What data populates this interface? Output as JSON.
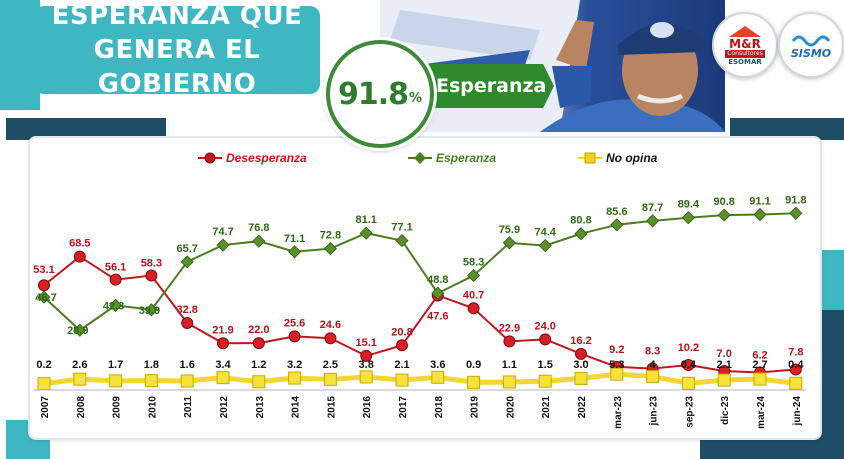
{
  "header": {
    "title_line1": "ESPERANZA QUE",
    "title_line2": "GENERA EL GOBIERNO",
    "highlight_value": "91.8",
    "highlight_unit": "%",
    "highlight_label": "Esperanza"
  },
  "logos": {
    "left_line1": "M&R",
    "left_line2": "Consultores",
    "left_line3": "ESOMAR",
    "right_text": "SISMO"
  },
  "colors": {
    "teal": "#3fb7c2",
    "navy": "#1d4e66",
    "red": "#c0161d",
    "green": "#4a7d22",
    "yellow": "#f2d21e"
  },
  "chart_data": {
    "type": "line",
    "categories": [
      "2007",
      "2008",
      "2009",
      "2010",
      "2011",
      "2012",
      "2013",
      "2014",
      "2015",
      "2016",
      "2017",
      "2018",
      "2019",
      "2020",
      "2021",
      "2022",
      "mar-23",
      "jun-23",
      "sep-23",
      "dic-23",
      "mar-24",
      "jun-24"
    ],
    "legend_position": "top",
    "grid": false,
    "ylim": [
      0,
      100
    ],
    "series": [
      {
        "name": "Desesperanza",
        "color": "#c0161d",
        "label_color": "#b3131a",
        "labels": [
          "53.1",
          "68.5",
          "56.1",
          "58.3",
          "32.8",
          "21.9",
          "22.0",
          "25.6",
          "24.6",
          "15.1",
          "20.8",
          "47.6",
          "40.7",
          "22.9",
          "24.0",
          "16.2",
          "9.2",
          "8.3",
          "10.2",
          "7.0",
          "6.2",
          "7.8"
        ],
        "values": [
          53.1,
          68.5,
          56.1,
          58.3,
          32.8,
          21.9,
          22.0,
          25.6,
          24.6,
          15.1,
          20.8,
          47.6,
          40.7,
          22.9,
          24.0,
          16.2,
          9.2,
          8.3,
          10.2,
          7.0,
          6.2,
          7.8
        ]
      },
      {
        "name": "Esperanza",
        "color": "#4a7d22",
        "label_color": "#2e6a14",
        "labels": [
          "46.7",
          "28.9",
          "42.3",
          "39.9",
          "65.7",
          "74.7",
          "76.8",
          "71.1",
          "72.8",
          "81.1",
          "77.1",
          "48.8",
          "58.3",
          "75.9",
          "74.4",
          "80.8",
          "85.6",
          "87.7",
          "89.4",
          "90.8",
          "91.1",
          "91.8"
        ],
        "values": [
          46.7,
          28.9,
          42.3,
          39.9,
          65.7,
          74.7,
          76.8,
          71.1,
          72.8,
          81.1,
          77.1,
          48.8,
          58.3,
          75.9,
          74.4,
          80.8,
          85.6,
          87.7,
          89.4,
          90.8,
          91.1,
          91.8
        ]
      },
      {
        "name": "No opina",
        "color": "#f2d21e",
        "label_color": "#111111",
        "labels": [
          "0.2",
          "2.6",
          "1.7",
          "1.8",
          "1.6",
          "3.4",
          "1.2",
          "3.2",
          "2.5",
          "3.8",
          "2.1",
          "3.6",
          "0.9",
          "1.1",
          "1.5",
          "3.0",
          "5.3",
          "4",
          "0.4",
          "2.1",
          "2.7",
          "0.4"
        ],
        "values": [
          0.2,
          2.6,
          1.7,
          1.8,
          1.6,
          3.4,
          1.2,
          3.2,
          2.5,
          3.8,
          2.1,
          3.6,
          0.9,
          1.1,
          1.5,
          3.0,
          5.3,
          4.0,
          0.4,
          2.1,
          2.7,
          0.4
        ]
      }
    ]
  }
}
